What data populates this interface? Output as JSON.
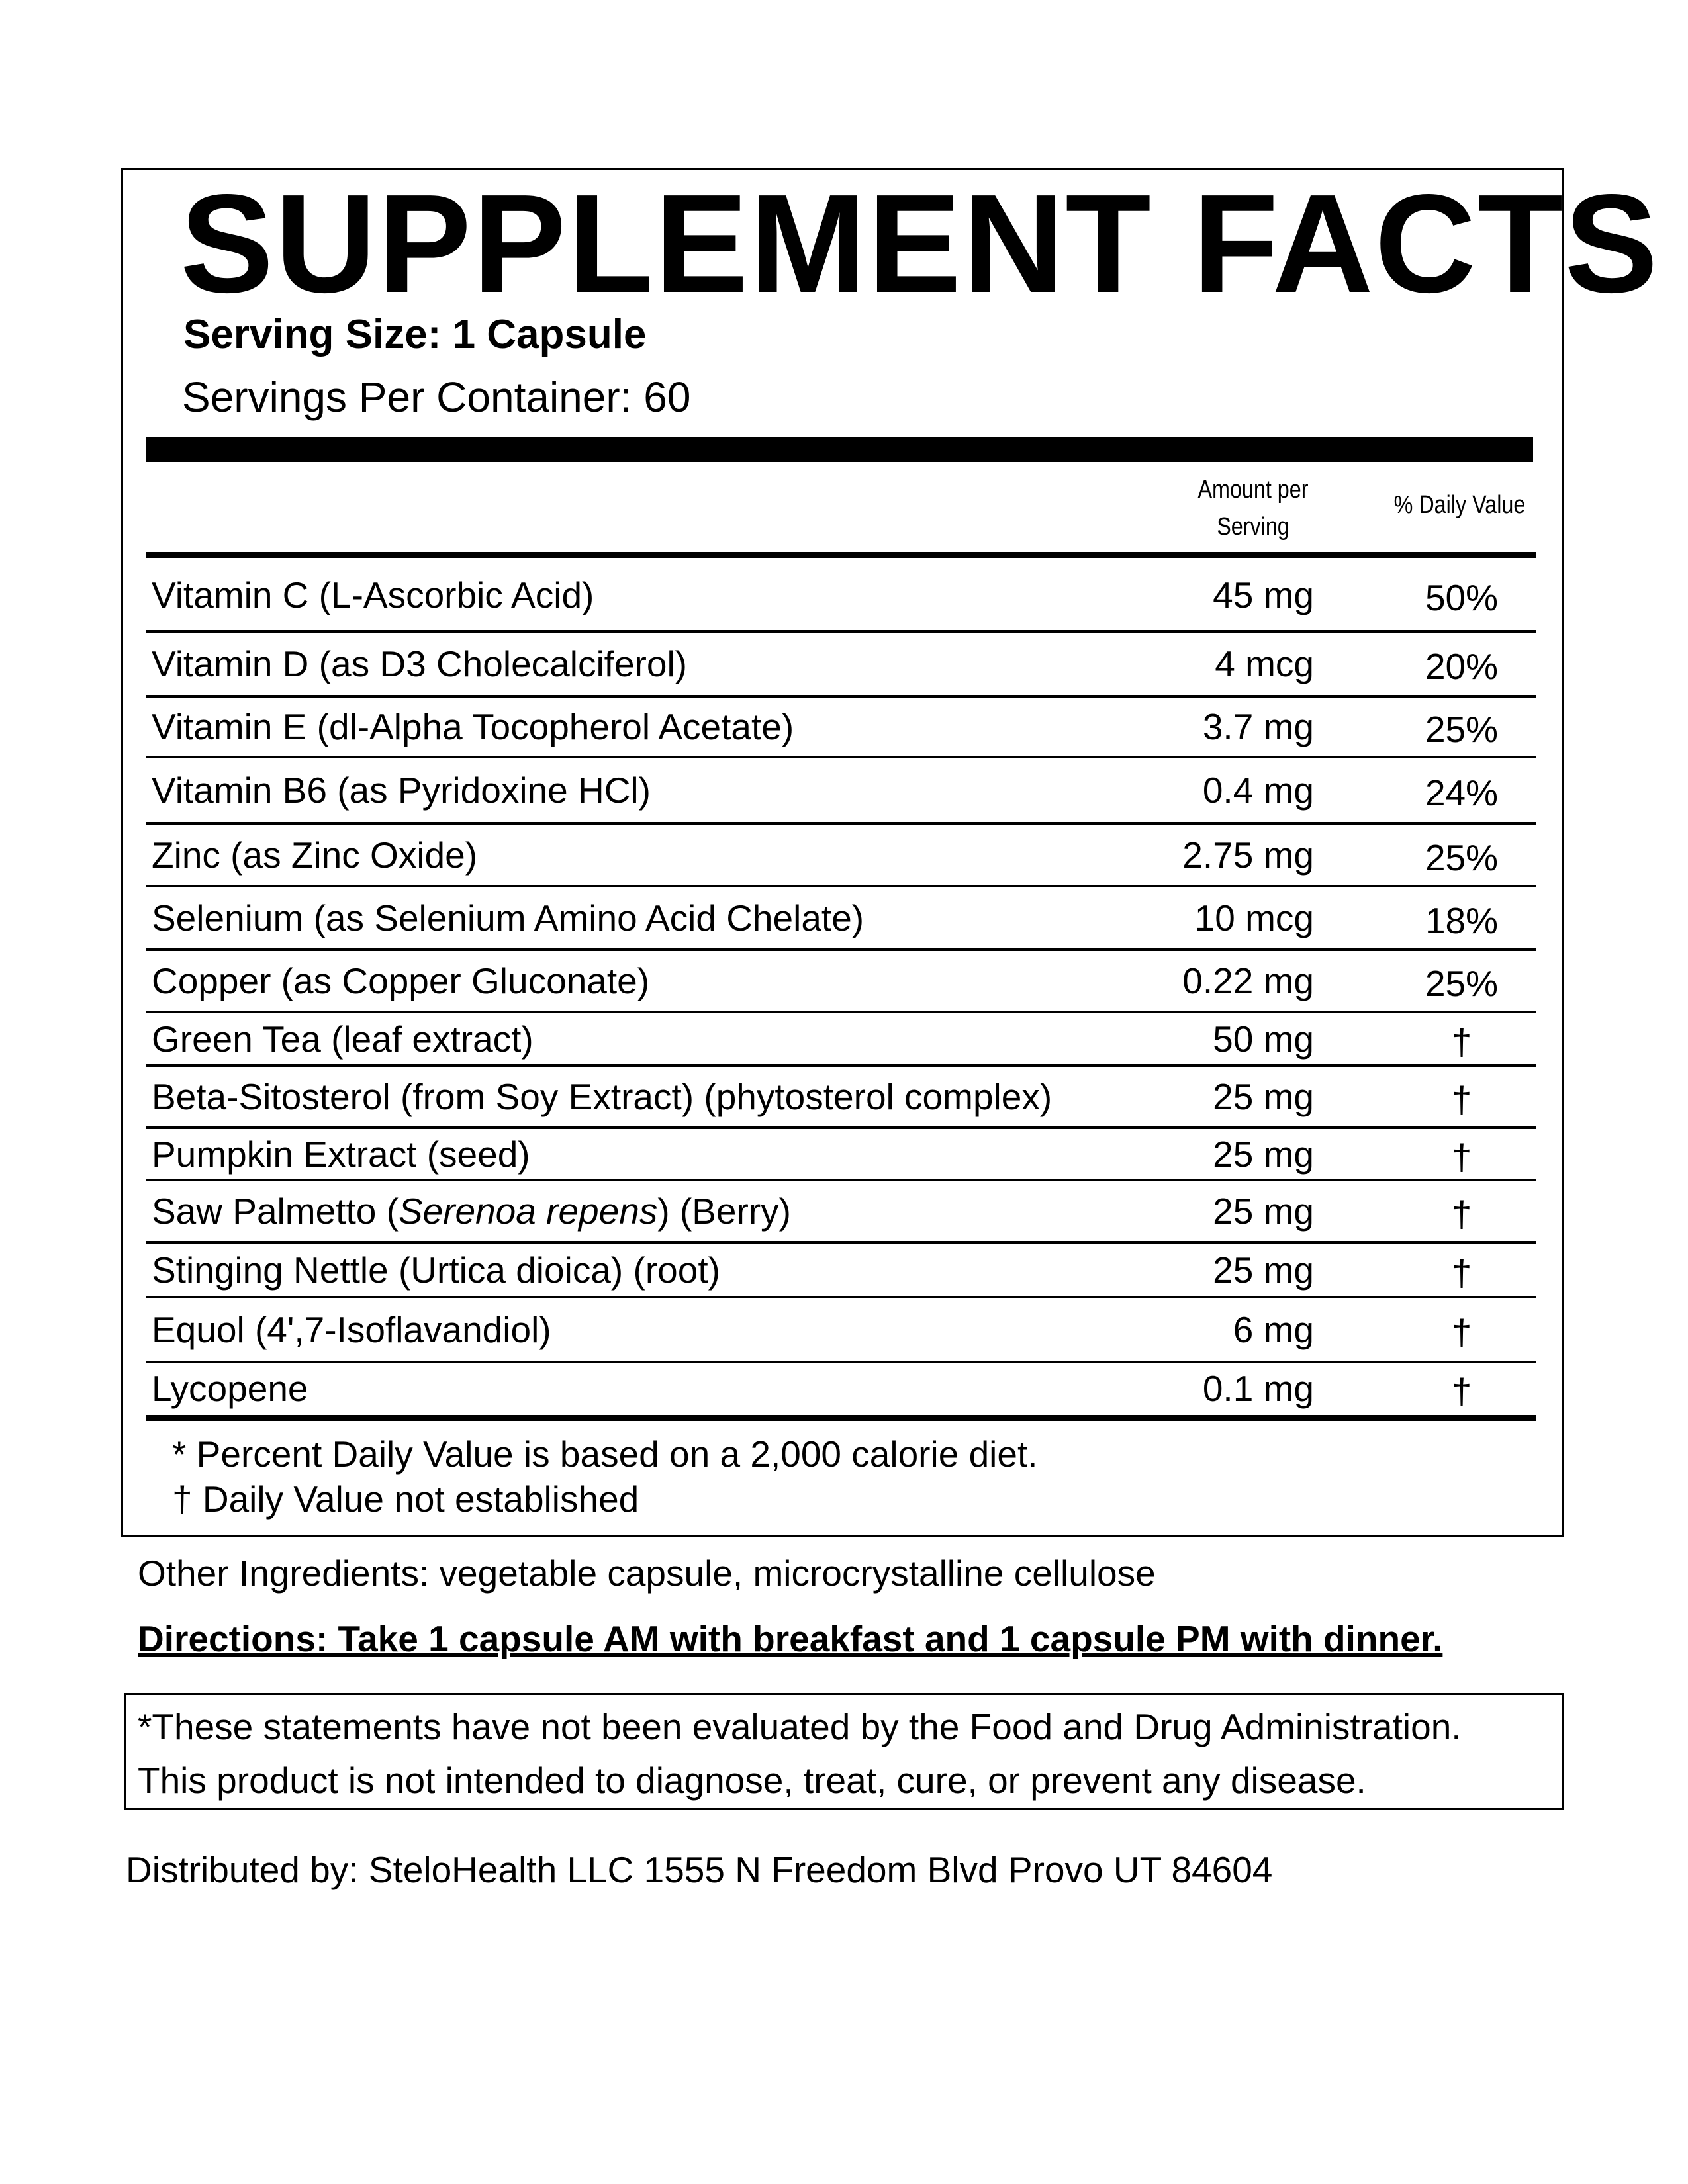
{
  "label": {
    "title": "SUPPLEMENT FACTS",
    "serving_size": "Serving Size: 1 Capsule",
    "servings_per_container": "Servings Per Container: 60",
    "header": {
      "amount": "Amount per Serving",
      "daily_value": "%  Daily Value"
    },
    "rows": [
      {
        "name": "Vitamin C (L-Ascorbic Acid)",
        "amount": "45 mg",
        "dv": "50%"
      },
      {
        "name": "Vitamin D (as D3 Cholecalciferol)",
        "amount": "4 mcg",
        "dv": "20%"
      },
      {
        "name": "Vitamin E (dl-Alpha Tocopherol Acetate)",
        "amount": "3.7 mg",
        "dv": "25%"
      },
      {
        "name": "Vitamin B6 (as Pyridoxine HCl)",
        "amount": "0.4 mg",
        "dv": "24%"
      },
      {
        "name": "Zinc (as Zinc Oxide)",
        "amount": "2.75 mg",
        "dv": "25%"
      },
      {
        "name": "Selenium (as Selenium Amino Acid Chelate)",
        "amount": "10 mcg",
        "dv": "18%"
      },
      {
        "name": "Copper (as Copper Gluconate)",
        "amount": "0.22 mg",
        "dv": "25%"
      },
      {
        "name": "Green Tea (leaf extract)",
        "amount": "50 mg",
        "dv": "†"
      },
      {
        "name": "Beta-Sitosterol (from Soy Extract) (phytosterol complex)",
        "amount": "25 mg",
        "dv": "†"
      },
      {
        "name": "Pumpkin Extract (seed)",
        "amount": "25 mg",
        "dv": "†"
      },
      {
        "name": "Saw Palmetto (",
        "italic": "Serenoa repens",
        "name_suffix": ") (Berry)",
        "amount": "25 mg",
        "dv": "†"
      },
      {
        "name": "Stinging Nettle (Urtica dioica) (root)",
        "amount": "25 mg",
        "dv": "†"
      },
      {
        "name": "Equol (4',7-Isoflavandiol)",
        "amount": "6 mg",
        "dv": "†"
      },
      {
        "name": "Lycopene",
        "amount": "0.1 mg",
        "dv": "†"
      }
    ],
    "footnote_1": "* Percent Daily Value is based on a 2,000 calorie diet.",
    "footnote_2": "† Daily Value not established"
  },
  "other_ingredients": "Other Ingredients: vegetable capsule, microcrystalline cellulose",
  "directions": "Directions: Take 1 capsule AM with breakfast and 1 capsule PM with dinner.",
  "disclaimer": {
    "line1": "*These statements have not been evaluated by the Food and Drug Administration.",
    "line2": "This product is not intended to diagnose, treat, cure, or prevent any disease."
  },
  "distributor": "Distributed by: SteloHealth LLC 1555 N Freedom Blvd Provo UT 84604"
}
